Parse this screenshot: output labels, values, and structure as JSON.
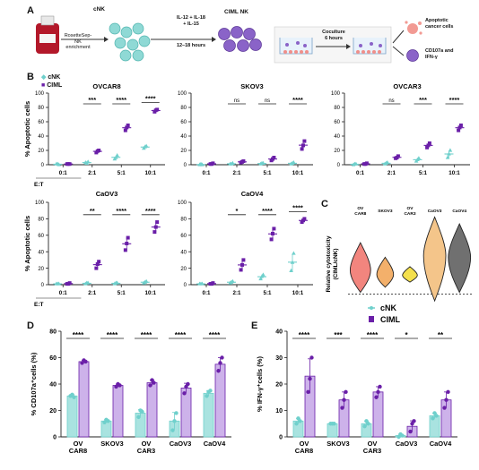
{
  "panels": {
    "A": "A",
    "B": "B",
    "C": "C",
    "D": "D",
    "E": "E"
  },
  "schematic": {
    "cnk": "cNK",
    "rosette": "RosetteSep-\nNK\nenrichment",
    "rosette_lines": [
      "RosetteSep-",
      "NK",
      "enrichment"
    ],
    "cytokines": [
      "IL-12 + IL-18",
      "+ IL-15"
    ],
    "hours": "12–18 hours",
    "ciml": "CIML NK",
    "coculture": [
      "Coculture",
      "6 hours"
    ],
    "apoptotic": [
      "Apoptotic",
      "cancer cells"
    ],
    "cd107": [
      "CD107a and",
      "IFN-γ"
    ]
  },
  "legend_B": {
    "cnk": "cNK",
    "ciml": "CIML"
  },
  "legend_C": {
    "cnk": "cNK",
    "ciml": "CIML"
  },
  "colors": {
    "cnk": "#6fd0cc",
    "ciml": "#6a1fa8",
    "ciml_bar": "#cdb2ea",
    "cnk_bar": "#a9e3e0"
  },
  "chart_data": [
    {
      "id": "B1",
      "type": "scatter",
      "title": "OVCAR8",
      "ylabel": "% Apoptotic cells",
      "xlabel": "E:T",
      "categories": [
        "0:1",
        "2:1",
        "5:1",
        "10:1"
      ],
      "ylim": [
        0,
        100
      ],
      "yticks": [
        "0",
        "20",
        "40",
        "60",
        "80",
        "100"
      ],
      "series": [
        {
          "name": "cNK",
          "points": [
            [
              1,
              1,
              0
            ],
            [
              3,
              2,
              4
            ],
            [
              8,
              10,
              13
            ],
            [
              23,
              25,
              26
            ]
          ]
        },
        {
          "name": "CIML",
          "points": [
            [
              1,
              1,
              1
            ],
            [
              17,
              19,
              20
            ],
            [
              48,
              52,
              55
            ],
            [
              74,
              76,
              77
            ]
          ]
        }
      ],
      "significance": [
        "***",
        "****",
        "****"
      ]
    },
    {
      "id": "B2",
      "type": "scatter",
      "title": "SKOV3",
      "categories": [
        "0:1",
        "2:1",
        "5:1",
        "10:1"
      ],
      "ylim": [
        0,
        100
      ],
      "yticks": [
        "0",
        "20",
        "40",
        "60",
        "80",
        "100"
      ],
      "series": [
        {
          "name": "cNK",
          "points": [
            [
              0,
              1,
              0
            ],
            [
              1,
              1,
              2
            ],
            [
              1,
              2,
              2
            ],
            [
              1,
              2,
              3
            ]
          ]
        },
        {
          "name": "CIML",
          "points": [
            [
              1,
              1,
              2
            ],
            [
              3,
              4,
              5
            ],
            [
              6,
              8,
              10
            ],
            [
              22,
              27,
              33
            ]
          ]
        }
      ],
      "significance": [
        "ns",
        "ns",
        "****"
      ]
    },
    {
      "id": "B3",
      "type": "scatter",
      "title": "OVCAR3",
      "categories": [
        "0:1",
        "2:1",
        "5:1",
        "10:1"
      ],
      "ylim": [
        0,
        100
      ],
      "yticks": [
        "0",
        "20",
        "40",
        "60",
        "80",
        "100"
      ],
      "series": [
        {
          "name": "cNK",
          "points": [
            [
              0,
              1,
              1
            ],
            [
              1,
              2,
              3
            ],
            [
              5,
              7,
              9
            ],
            [
              10,
              15,
              20
            ]
          ]
        },
        {
          "name": "CIML",
          "points": [
            [
              1,
              1,
              2
            ],
            [
              9,
              10,
              12
            ],
            [
              24,
              27,
              30
            ],
            [
              48,
              52,
              55
            ]
          ]
        }
      ],
      "significance": [
        "ns",
        "***",
        "****"
      ]
    },
    {
      "id": "B4",
      "type": "scatter",
      "title": "CaOV3",
      "ylabel": "% Apoptotic cells",
      "xlabel": "E:T",
      "categories": [
        "0:1",
        "2:1",
        "5:1",
        "10:1"
      ],
      "ylim": [
        0,
        100
      ],
      "yticks": [
        "0",
        "20",
        "40",
        "60",
        "80",
        "100"
      ],
      "series": [
        {
          "name": "cNK",
          "points": [
            [
              1,
              1,
              1
            ],
            [
              1,
              2,
              2
            ],
            [
              1,
              2,
              2
            ],
            [
              2,
              3,
              4
            ]
          ]
        },
        {
          "name": "CIML",
          "points": [
            [
              1,
              1,
              2
            ],
            [
              20,
              25,
              28
            ],
            [
              42,
              50,
              57
            ],
            [
              64,
              70,
              76
            ]
          ]
        }
      ],
      "significance": [
        "**",
        "****",
        "****"
      ]
    },
    {
      "id": "B5",
      "type": "scatter",
      "title": "CaOV4",
      "categories": [
        "0:1",
        "2:1",
        "5:1",
        "10:1"
      ],
      "ylim": [
        0,
        100
      ],
      "yticks": [
        "0",
        "20",
        "40",
        "60",
        "80",
        "100"
      ],
      "series": [
        {
          "name": "cNK",
          "points": [
            [
              1,
              1,
              1
            ],
            [
              2,
              3,
              4
            ],
            [
              7,
              10,
              12
            ],
            [
              17,
              27,
              38
            ]
          ]
        },
        {
          "name": "CIML",
          "points": [
            [
              1,
              1,
              2
            ],
            [
              18,
              24,
              30
            ],
            [
              55,
              62,
              68
            ],
            [
              76,
              78,
              80
            ]
          ]
        }
      ],
      "significance": [
        "*",
        "****",
        "****"
      ]
    },
    {
      "id": "C",
      "type": "violin",
      "ylabel": "Relative cytotoxicity\n(CIML/cNK)",
      "ylabel_lines": [
        "Relative cytotoxicity",
        "(CIML/cNK)"
      ],
      "categories": [
        "OV\nCAR8",
        "SKOV3",
        "OV\nCAR3",
        "CaOV3",
        "CaOV4"
      ],
      "category_lines": [
        [
          "OV",
          "CAR8"
        ],
        [
          "SKOV3"
        ],
        [
          "OV",
          "CAR3"
        ],
        [
          "CaOV3"
        ],
        [
          "CaOV4"
        ]
      ],
      "ylim": [
        -1,
        8
      ],
      "baseline": 0,
      "violins": [
        {
          "center": 2.8,
          "low": 0.2,
          "high": 6.0,
          "width": 0.55,
          "color": "#f2857e"
        },
        {
          "center": 2.3,
          "low": 0.8,
          "high": 4.3,
          "width": 0.45,
          "color": "#f3b06b"
        },
        {
          "center": 2.2,
          "low": 1.4,
          "high": 3.2,
          "width": 0.4,
          "color": "#f4e04d"
        },
        {
          "center": 4.5,
          "low": -0.8,
          "high": 9.0,
          "width": 0.6,
          "color": "#f4c58a"
        },
        {
          "center": 4.3,
          "low": 0.2,
          "high": 8.2,
          "width": 0.6,
          "color": "#707070"
        }
      ]
    },
    {
      "id": "D",
      "type": "bar",
      "ylabel": "% CD107a⁺cells (%)",
      "categories": [
        "OV\nCAR8",
        "SKOV3",
        "OV\nCAR3",
        "CaOV3",
        "CaOV4"
      ],
      "category_lines": [
        [
          "OV",
          "CAR8"
        ],
        [
          "SKOV3"
        ],
        [
          "OV",
          "CAR3"
        ],
        [
          "CaOV3"
        ],
        [
          "CaOV4"
        ]
      ],
      "ylim": [
        0,
        80
      ],
      "yticks": [
        "0",
        "20",
        "40",
        "60",
        "80"
      ],
      "series": [
        {
          "name": "cNK",
          "values": [
            31,
            12,
            18,
            12,
            33
          ],
          "points": [
            [
              31,
              32,
              30
            ],
            [
              11,
              13,
              12
            ],
            [
              15,
              20,
              19
            ],
            [
              5,
              12,
              18
            ],
            [
              31,
              34,
              35
            ]
          ]
        },
        {
          "name": "CIML",
          "values": [
            57,
            39,
            41,
            37,
            55
          ],
          "points": [
            [
              56,
              58,
              57
            ],
            [
              38,
              40,
              39
            ],
            [
              39,
              43,
              41
            ],
            [
              33,
              38,
              40
            ],
            [
              50,
              56,
              60
            ]
          ]
        }
      ],
      "significance": [
        "****",
        "****",
        "****",
        "****",
        "****"
      ]
    },
    {
      "id": "E",
      "type": "bar",
      "ylabel": "% IFN-γ⁺cells (%)",
      "categories": [
        "OV\nCAR8",
        "SKOV3",
        "OV\nCAR3",
        "CaOV3",
        "CaOV4"
      ],
      "category_lines": [
        [
          "OV",
          "CAR8"
        ],
        [
          "SKOV3"
        ],
        [
          "OV",
          "CAR3"
        ],
        [
          "CaOV3"
        ],
        [
          "CaOV4"
        ]
      ],
      "ylim": [
        0,
        40
      ],
      "yticks": [
        "0",
        "10",
        "20",
        "30",
        "40"
      ],
      "series": [
        {
          "name": "cNK",
          "values": [
            6,
            5,
            5,
            0.5,
            8
          ],
          "points": [
            [
              5,
              7,
              6
            ],
            [
              5,
              5,
              5
            ],
            [
              4,
              6,
              5
            ],
            [
              0,
              1,
              0.5
            ],
            [
              7,
              9,
              8
            ]
          ]
        },
        {
          "name": "CIML",
          "values": [
            23,
            14,
            17,
            4,
            14
          ],
          "points": [
            [
              17,
              22,
              30
            ],
            [
              11,
              14,
              17
            ],
            [
              15,
              17,
              19
            ],
            [
              2,
              5,
              6
            ],
            [
              11,
              14,
              17
            ]
          ]
        }
      ],
      "significance": [
        "****",
        "***",
        "****",
        "*",
        "**"
      ]
    }
  ]
}
